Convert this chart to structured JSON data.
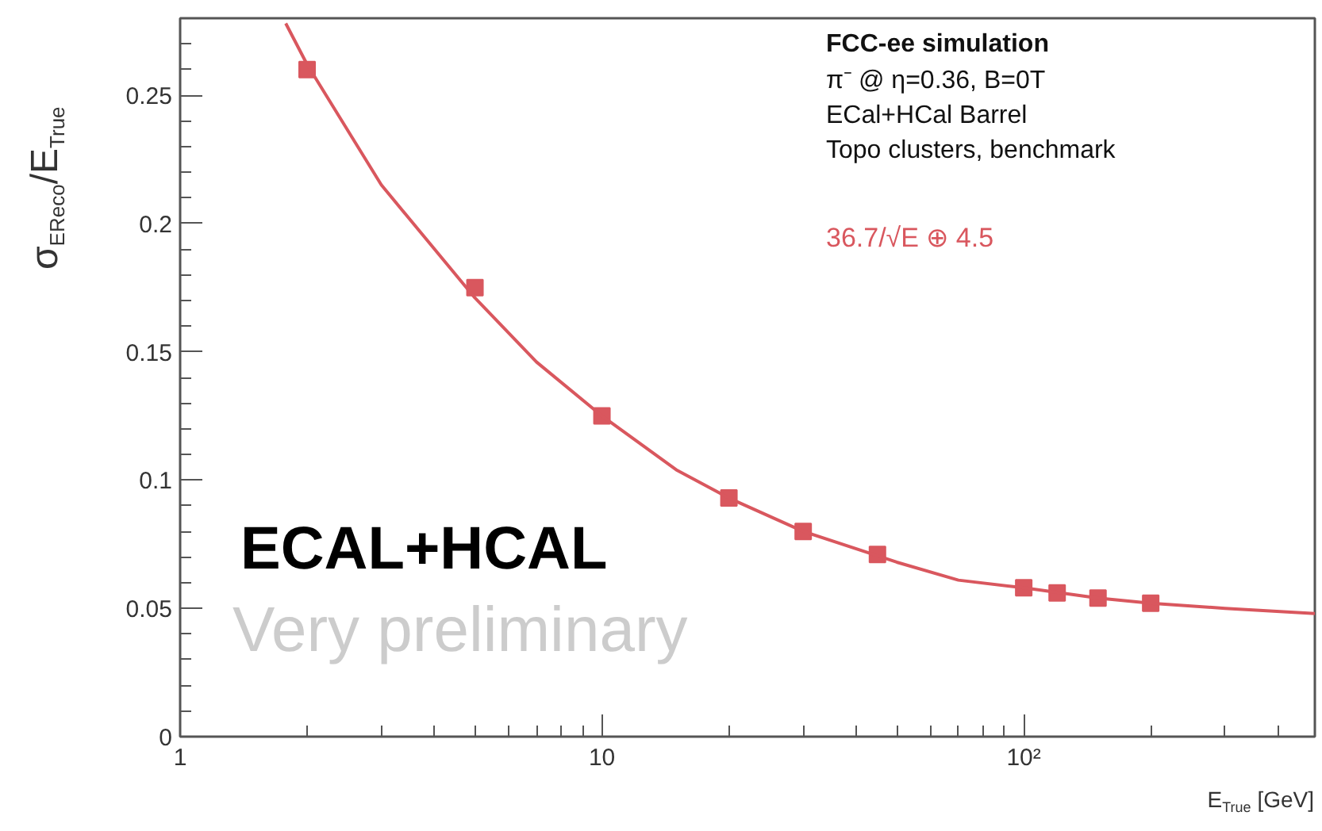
{
  "chart_data": {
    "type": "scatter",
    "xlabel": "E$_{True}$ [GeV]",
    "ylabel": "σ$_{E}$$_{Reco}$/E$_{True}$",
    "log": "x",
    "xlim": [
      1,
      490
    ],
    "ylim": [
      0,
      0.28
    ],
    "xticks": [
      1,
      10,
      {
        "value": 100,
        "label": "10²"
      },
      {
        "value": 2,
        "label": null
      },
      {
        "value": 3,
        "label": null
      },
      {
        "value": 4,
        "label": null
      },
      {
        "value": 5,
        "label": null
      },
      {
        "value": 6,
        "label": null
      },
      {
        "value": 7,
        "label": null
      },
      {
        "value": 8,
        "label": null
      },
      {
        "value": 9,
        "label": null
      },
      {
        "value": 20,
        "label": null
      },
      {
        "value": 30,
        "label": null
      },
      {
        "value": 40,
        "label": null
      },
      {
        "value": 50,
        "label": null
      },
      {
        "value": 60,
        "label": null
      },
      {
        "value": 70,
        "label": null
      },
      {
        "value": 80,
        "label": null
      },
      {
        "value": 90,
        "label": null
      },
      {
        "value": 200,
        "label": null
      },
      {
        "value": 300,
        "label": null
      },
      {
        "value": 400,
        "label": null
      }
    ],
    "yticks": [
      0,
      0.05,
      0.1,
      0.15,
      0.2,
      0.25
    ],
    "grid": false,
    "marker": "square",
    "series": [
      {
        "color": "#d9575e",
        "x": [
          2,
          5,
          10,
          20,
          30,
          45,
          100,
          120,
          150,
          200
        ],
        "values": [
          0.26,
          0.175,
          0.125,
          0.093,
          0.08,
          0.071,
          0.058,
          0.056,
          0.054,
          0.052
        ]
      },
      {
        "type": "line",
        "marker": "none",
        "name": "36.7/√E ⊕ 4.5",
        "color": "#d9575e",
        "x": [
          1.78,
          2,
          3,
          5,
          7,
          10,
          15,
          20,
          30,
          50,
          70,
          100,
          150,
          200,
          300,
          490
        ],
        "values": [
          0.278,
          0.262,
          0.215,
          0.171,
          0.146,
          0.125,
          0.104,
          0.093,
          0.08,
          0.068,
          0.061,
          0.058,
          0.054,
          0.052,
          0.05,
          0.048
        ]
      }
    ],
    "annotations": [
      "FCC-ee simulation",
      "π⁻ @ η=0.36, B=0T",
      "ECal+HCal Barrel",
      "Topo clusters, benchmark",
      "ECAL+HCAL",
      "Very preliminary"
    ]
  }
}
